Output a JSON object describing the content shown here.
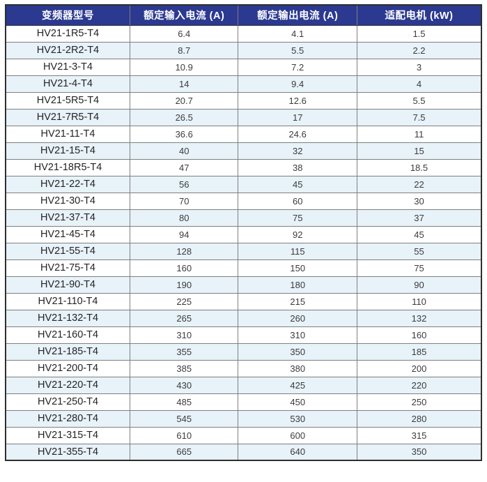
{
  "table": {
    "headers": [
      "变频器型号",
      "额定输入电流 (A)",
      "额定输出电流 (A)",
      "适配电机 (kW)"
    ],
    "rows": [
      {
        "model": "HV21-1R5-T4",
        "input": "6.4",
        "output": "4.1",
        "motor": "1.5"
      },
      {
        "model": "HV21-2R2-T4",
        "input": "8.7",
        "output": "5.5",
        "motor": "2.2"
      },
      {
        "model": "HV21-3-T4",
        "input": "10.9",
        "output": "7.2",
        "motor": "3"
      },
      {
        "model": "HV21-4-T4",
        "input": "14",
        "output": "9.4",
        "motor": "4"
      },
      {
        "model": "HV21-5R5-T4",
        "input": "20.7",
        "output": "12.6",
        "motor": "5.5"
      },
      {
        "model": "HV21-7R5-T4",
        "input": "26.5",
        "output": "17",
        "motor": "7.5"
      },
      {
        "model": "HV21-11-T4",
        "input": "36.6",
        "output": "24.6",
        "motor": "11"
      },
      {
        "model": "HV21-15-T4",
        "input": "40",
        "output": "32",
        "motor": "15"
      },
      {
        "model": "HV21-18R5-T4",
        "input": "47",
        "output": "38",
        "motor": "18.5"
      },
      {
        "model": "HV21-22-T4",
        "input": "56",
        "output": "45",
        "motor": "22"
      },
      {
        "model": "HV21-30-T4",
        "input": "70",
        "output": "60",
        "motor": "30"
      },
      {
        "model": "HV21-37-T4",
        "input": "80",
        "output": "75",
        "motor": "37"
      },
      {
        "model": "HV21-45-T4",
        "input": "94",
        "output": "92",
        "motor": "45"
      },
      {
        "model": "HV21-55-T4",
        "input": "128",
        "output": "115",
        "motor": "55"
      },
      {
        "model": "HV21-75-T4",
        "input": "160",
        "output": "150",
        "motor": "75"
      },
      {
        "model": "HV21-90-T4",
        "input": "190",
        "output": "180",
        "motor": "90"
      },
      {
        "model": "HV21-110-T4",
        "input": "225",
        "output": "215",
        "motor": "110"
      },
      {
        "model": "HV21-132-T4",
        "input": "265",
        "output": "260",
        "motor": "132"
      },
      {
        "model": "HV21-160-T4",
        "input": "310",
        "output": "310",
        "motor": "160"
      },
      {
        "model": "HV21-185-T4",
        "input": "355",
        "output": "350",
        "motor": "185"
      },
      {
        "model": "HV21-200-T4",
        "input": "385",
        "output": "380",
        "motor": "200"
      },
      {
        "model": "HV21-220-T4",
        "input": "430",
        "output": "425",
        "motor": "220"
      },
      {
        "model": "HV21-250-T4",
        "input": "485",
        "output": "450",
        "motor": "250"
      },
      {
        "model": "HV21-280-T4",
        "input": "545",
        "output": "530",
        "motor": "280"
      },
      {
        "model": "HV21-315-T4",
        "input": "610",
        "output": "600",
        "motor": "315"
      },
      {
        "model": "HV21-355-T4",
        "input": "665",
        "output": "640",
        "motor": "350"
      }
    ],
    "colors": {
      "header_bg": "#2B3990",
      "header_text": "#FFFFFF",
      "row_bg": "#FFFFFF",
      "row_alt_bg": "#E7F2F9",
      "grid_line": "#7F7F7F",
      "outer_border": "#2E2E2E",
      "model_text": "#242424",
      "value_text": "#3C3C3C"
    }
  }
}
